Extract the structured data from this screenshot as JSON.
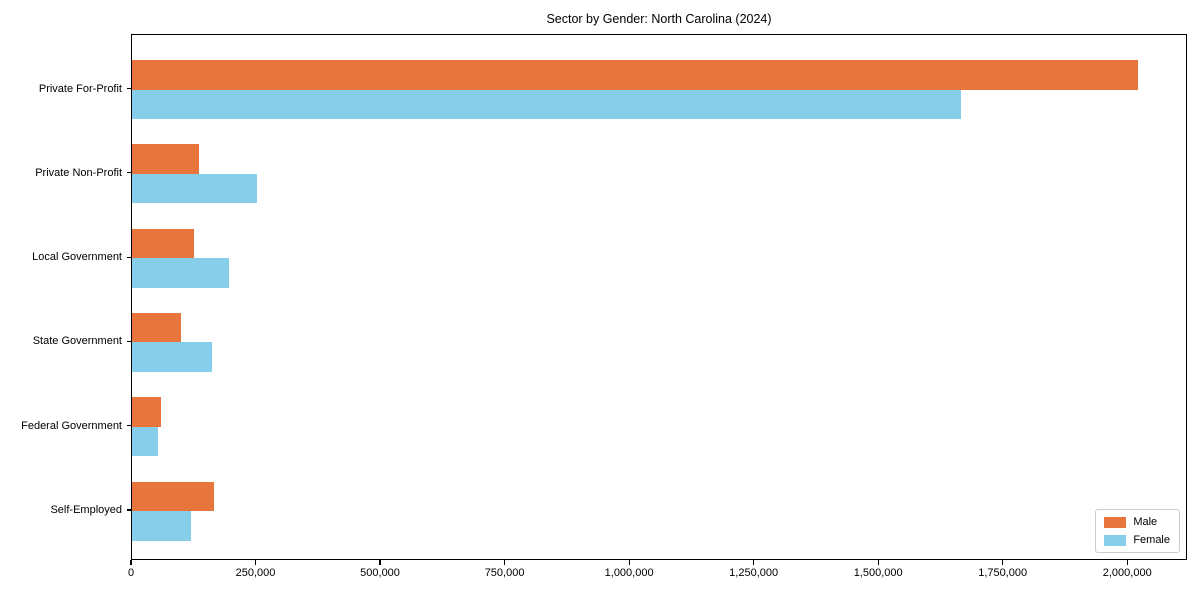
{
  "chart_data": {
    "type": "bar",
    "orientation": "horizontal",
    "title": "Sector by Gender: North Carolina (2024)",
    "categories": [
      "Private For-Profit",
      "Private Non-Profit",
      "Local Government",
      "State Government",
      "Federal Government",
      "Self-Employed"
    ],
    "series": [
      {
        "name": "Male",
        "color": "#e8763c",
        "values": [
          2020000,
          135000,
          125000,
          98000,
          58000,
          165000
        ]
      },
      {
        "name": "Female",
        "color": "#87ceeb",
        "values": [
          1665000,
          251000,
          195000,
          161000,
          52000,
          119000
        ]
      }
    ],
    "xlabel": "",
    "ylabel": "",
    "xlim": [
      0,
      2120000
    ],
    "x_ticks": [
      0,
      250000,
      500000,
      750000,
      1000000,
      1250000,
      1500000,
      1750000,
      2000000
    ],
    "x_tick_labels": [
      "0",
      "250,000",
      "500,000",
      "750,000",
      "1,000,000",
      "1,250,000",
      "1,500,000",
      "1,750,000",
      "2,000,000"
    ],
    "grid": false,
    "legend": {
      "position": "lower right",
      "entries": [
        "Male",
        "Female"
      ]
    },
    "colors": {
      "background": "#ffffff",
      "text": "#000000",
      "spine": "#000000",
      "legend_border": "#cccccc"
    }
  }
}
